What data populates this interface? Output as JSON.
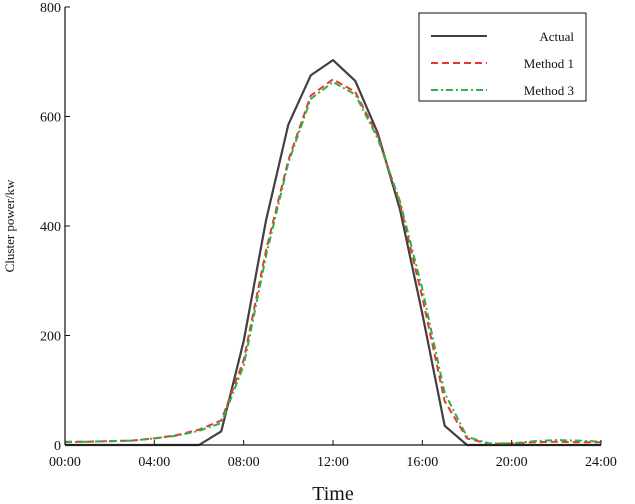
{
  "chart_data": {
    "type": "line",
    "xlabel": "Time",
    "ylabel": "Cluster power/kw",
    "xlim": [
      0,
      24
    ],
    "ylim": [
      0,
      800
    ],
    "x_ticks": [
      {
        "value": 0,
        "label": "00:00"
      },
      {
        "value": 4,
        "label": "04:00"
      },
      {
        "value": 8,
        "label": "08:00"
      },
      {
        "value": 12,
        "label": "12:00"
      },
      {
        "value": 16,
        "label": "16:00"
      },
      {
        "value": 20,
        "label": "20:00"
      },
      {
        "value": 24,
        "label": "24:00"
      }
    ],
    "y_ticks": [
      {
        "value": 0,
        "label": "0"
      },
      {
        "value": 200,
        "label": "200"
      },
      {
        "value": 400,
        "label": "400"
      },
      {
        "value": 600,
        "label": "600"
      },
      {
        "value": 800,
        "label": "800"
      }
    ],
    "grid": false,
    "legend_position": "top-right",
    "series": [
      {
        "name": "Actual",
        "color": "#404040",
        "dash": "solid",
        "points": [
          [
            0,
            0
          ],
          [
            1,
            0
          ],
          [
            2,
            0
          ],
          [
            3,
            0
          ],
          [
            4,
            0
          ],
          [
            5,
            0
          ],
          [
            6,
            0
          ],
          [
            7,
            25
          ],
          [
            8,
            190
          ],
          [
            9,
            410
          ],
          [
            10,
            585
          ],
          [
            11,
            675
          ],
          [
            12,
            703
          ],
          [
            13,
            665
          ],
          [
            14,
            570
          ],
          [
            15,
            430
          ],
          [
            16,
            240
          ],
          [
            17,
            35
          ],
          [
            18,
            0
          ],
          [
            19,
            0
          ],
          [
            20,
            0
          ],
          [
            21,
            0
          ],
          [
            22,
            0
          ],
          [
            23,
            0
          ],
          [
            24,
            0
          ]
        ]
      },
      {
        "name": "Method 1",
        "color": "#e8372a",
        "dash": "dashed",
        "points": [
          [
            0,
            6
          ],
          [
            1,
            6
          ],
          [
            2,
            7
          ],
          [
            3,
            8
          ],
          [
            4,
            12
          ],
          [
            5,
            18
          ],
          [
            6,
            28
          ],
          [
            7,
            45
          ],
          [
            8,
            155
          ],
          [
            9,
            355
          ],
          [
            10,
            520
          ],
          [
            11,
            638
          ],
          [
            12,
            668
          ],
          [
            13,
            645
          ],
          [
            14,
            565
          ],
          [
            15,
            440
          ],
          [
            16,
            270
          ],
          [
            17,
            80
          ],
          [
            18,
            12
          ],
          [
            19,
            2
          ],
          [
            20,
            3
          ],
          [
            21,
            5
          ],
          [
            22,
            6
          ],
          [
            23,
            5
          ],
          [
            24,
            5
          ]
        ]
      },
      {
        "name": "Method 3",
        "color": "#2fae4a",
        "dash": "dashdot",
        "points": [
          [
            0,
            5
          ],
          [
            1,
            6
          ],
          [
            2,
            7
          ],
          [
            3,
            8
          ],
          [
            4,
            12
          ],
          [
            5,
            17
          ],
          [
            6,
            26
          ],
          [
            7,
            40
          ],
          [
            8,
            145
          ],
          [
            9,
            345
          ],
          [
            10,
            515
          ],
          [
            11,
            632
          ],
          [
            12,
            663
          ],
          [
            13,
            640
          ],
          [
            14,
            560
          ],
          [
            15,
            445
          ],
          [
            16,
            285
          ],
          [
            17,
            95
          ],
          [
            18,
            15
          ],
          [
            19,
            3
          ],
          [
            20,
            3
          ],
          [
            21,
            7
          ],
          [
            22,
            9
          ],
          [
            23,
            8
          ],
          [
            24,
            6
          ]
        ]
      }
    ]
  }
}
